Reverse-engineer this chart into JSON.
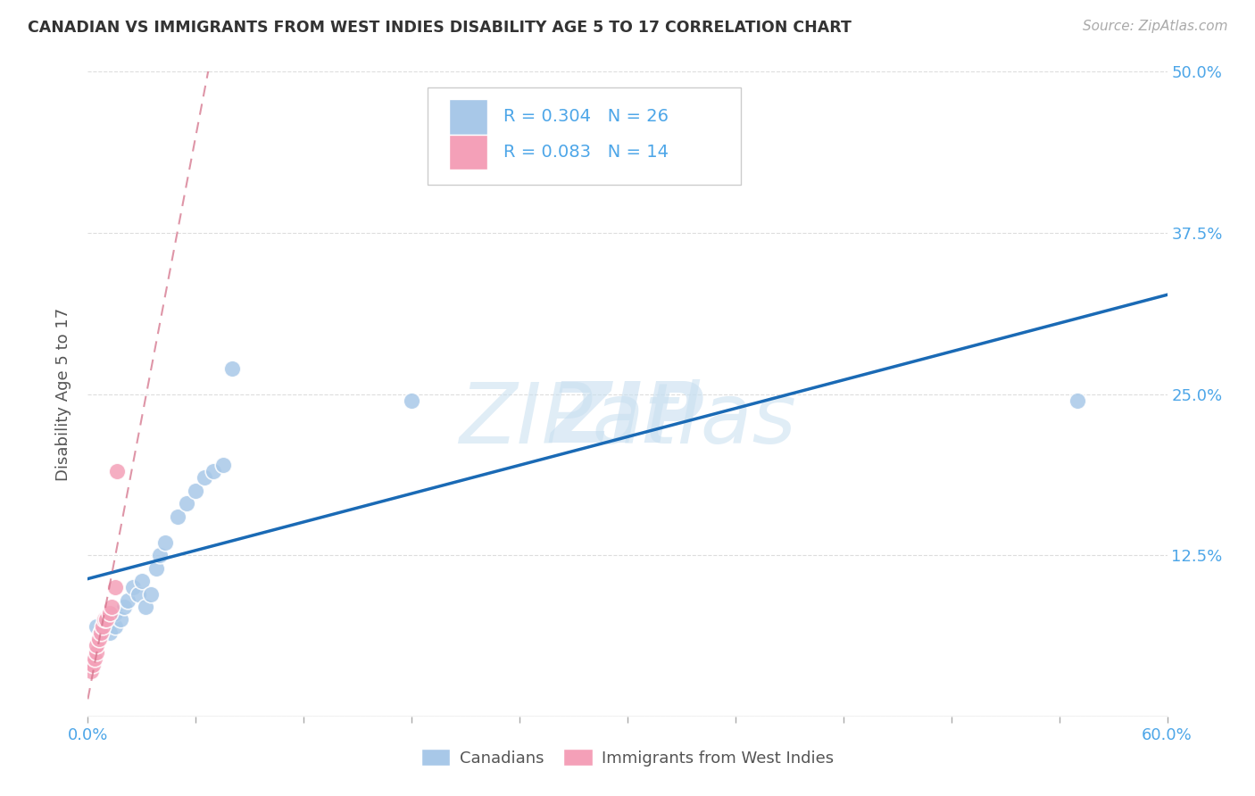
{
  "title": "CANADIAN VS IMMIGRANTS FROM WEST INDIES DISABILITY AGE 5 TO 17 CORRELATION CHART",
  "source": "Source: ZipAtlas.com",
  "ylabel": "Disability Age 5 to 17",
  "xlim": [
    0.0,
    0.6
  ],
  "ylim": [
    0.0,
    0.5
  ],
  "xticks": [
    0.0,
    0.06,
    0.12,
    0.18,
    0.24,
    0.3,
    0.36,
    0.42,
    0.48,
    0.54,
    0.6
  ],
  "yticks": [
    0.0,
    0.125,
    0.25,
    0.375,
    0.5
  ],
  "yticklabels_right": [
    "",
    "12.5%",
    "25.0%",
    "37.5%",
    "50.0%"
  ],
  "canadians_x": [
    0.005,
    0.007,
    0.01,
    0.012,
    0.015,
    0.015,
    0.018,
    0.02,
    0.022,
    0.025,
    0.028,
    0.03,
    0.032,
    0.035,
    0.038,
    0.04,
    0.043,
    0.05,
    0.055,
    0.06,
    0.065,
    0.07,
    0.075,
    0.18,
    0.55,
    0.08
  ],
  "canadians_y": [
    0.07,
    0.065,
    0.075,
    0.065,
    0.07,
    0.08,
    0.075,
    0.085,
    0.09,
    0.1,
    0.095,
    0.105,
    0.085,
    0.095,
    0.115,
    0.125,
    0.135,
    0.155,
    0.165,
    0.175,
    0.185,
    0.19,
    0.195,
    0.245,
    0.245,
    0.27
  ],
  "immigrants_x": [
    0.002,
    0.003,
    0.004,
    0.005,
    0.005,
    0.006,
    0.007,
    0.008,
    0.009,
    0.01,
    0.012,
    0.013,
    0.015,
    0.016
  ],
  "immigrants_y": [
    0.035,
    0.04,
    0.045,
    0.05,
    0.055,
    0.06,
    0.065,
    0.07,
    0.075,
    0.075,
    0.08,
    0.085,
    0.1,
    0.19
  ],
  "canadian_color": "#a8c8e8",
  "immigrant_color": "#f4a0b8",
  "canadian_line_color": "#1a6ab5",
  "immigrant_line_color": "#d4728a",
  "R_canadian": 0.304,
  "N_canadian": 26,
  "R_immigrant": 0.083,
  "N_immigrant": 14,
  "legend_label_canadian": "Canadians",
  "legend_label_immigrant": "Immigrants from West Indies",
  "title_color": "#333333",
  "axis_label_color": "#4da6e8",
  "grid_color": "#dddddd",
  "background_color": "#ffffff",
  "watermark_color": "#c8dff0"
}
